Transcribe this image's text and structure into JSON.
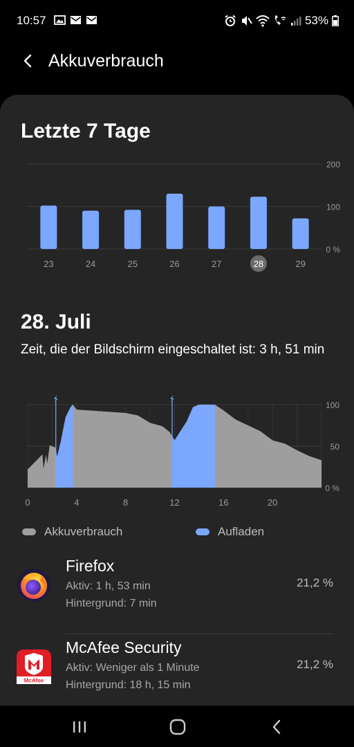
{
  "status_bar": {
    "time": "10:57",
    "battery_percent": "53%",
    "left_icons": [
      "image-icon",
      "mail-icon",
      "mail-icon"
    ],
    "right_icons": [
      "alarm-icon",
      "mute-icon",
      "wifi-icon",
      "wifi-call-icon",
      "signal-icon",
      "battery-icon"
    ]
  },
  "header": {
    "title": "Akkuverbrauch",
    "back_icon": "back-arrow-icon"
  },
  "week_section": {
    "title": "Letzte 7 Tage"
  },
  "week_chart": {
    "type": "bar",
    "categories": [
      "23",
      "24",
      "25",
      "26",
      "27",
      "28",
      "29"
    ],
    "values": [
      102,
      90,
      92,
      130,
      100,
      123,
      72
    ],
    "selected_category": "28",
    "ylim": [
      0,
      200
    ],
    "y_ticks": [
      "200",
      "100",
      "0 %"
    ],
    "grid": true,
    "bar_color": "#7ba7ff"
  },
  "day_section": {
    "title": "28. Juli",
    "screen_time": "Zeit, die der Bildschirm eingeschaltet ist: 3 h, 51 min"
  },
  "day_chart": {
    "type": "area",
    "x_range": [
      0,
      24
    ],
    "x_ticks": [
      "0",
      "4",
      "8",
      "12",
      "16",
      "20"
    ],
    "ylim": [
      0,
      100
    ],
    "y_ticks": [
      "100",
      "50",
      "0 %"
    ],
    "battery_level": [
      [
        0,
        22
      ],
      [
        0.8,
        34
      ],
      [
        1.2,
        40
      ],
      [
        1.3,
        23
      ],
      [
        1.5,
        40
      ],
      [
        1.6,
        29
      ],
      [
        1.7,
        40
      ],
      [
        1.8,
        51
      ],
      [
        2.3,
        48
      ],
      [
        2.4,
        37
      ],
      [
        2.7,
        55
      ],
      [
        3.1,
        85
      ],
      [
        3.5,
        97
      ],
      [
        3.7,
        100
      ],
      [
        4.0,
        94
      ],
      [
        6,
        92
      ],
      [
        8,
        90
      ],
      [
        9,
        87
      ],
      [
        10,
        78
      ],
      [
        11,
        74
      ],
      [
        11.6,
        67
      ],
      [
        12.0,
        57
      ],
      [
        13.0,
        80
      ],
      [
        13.5,
        97
      ],
      [
        14,
        100
      ],
      [
        15.3,
        100
      ],
      [
        16,
        93
      ],
      [
        17,
        82
      ],
      [
        18,
        75
      ],
      [
        19,
        68
      ],
      [
        20,
        57
      ],
      [
        21,
        53
      ],
      [
        22,
        45
      ],
      [
        23,
        38
      ],
      [
        24,
        33
      ]
    ],
    "charging_periods": [
      [
        2.3,
        3.7
      ],
      [
        11.8,
        15.3
      ]
    ],
    "charge_start_markers": [
      2.3,
      11.8
    ],
    "usage_color": "#9e9e9e",
    "charging_color": "#7ba7ff"
  },
  "legend": {
    "usage_label": "Akkuverbrauch",
    "charging_label": "Aufladen"
  },
  "apps": [
    {
      "name": "Firefox",
      "active": "Aktiv: 1 h, 53 min",
      "background": "Hintergrund: 7 min",
      "percent": "21,2 %",
      "icon": "firefox-icon"
    },
    {
      "name": "McAfee Security",
      "active": "Aktiv: Weniger als 1 Minute",
      "background": "Hintergrund: 18 h, 15 min",
      "percent": "21,2 %",
      "icon": "mcafee-icon",
      "icon_label": "McAfee"
    }
  ],
  "nav_bar": {
    "buttons": [
      "recent-apps-icon",
      "home-icon",
      "back-icon"
    ]
  }
}
